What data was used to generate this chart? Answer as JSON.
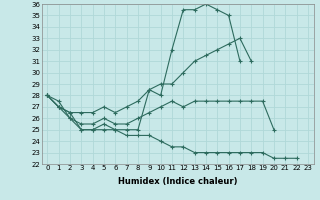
{
  "xlabel": "Humidex (Indice chaleur)",
  "bg_color": "#c8e8e8",
  "line_color": "#2d6b5e",
  "grid_color": "#b0d8d8",
  "ylim": [
    22,
    36
  ],
  "xlim": [
    -0.5,
    23.5
  ],
  "yticks": [
    22,
    23,
    24,
    25,
    26,
    27,
    28,
    29,
    30,
    31,
    32,
    33,
    34,
    35,
    36
  ],
  "xticks": [
    0,
    1,
    2,
    3,
    4,
    5,
    6,
    7,
    8,
    9,
    10,
    11,
    12,
    13,
    14,
    15,
    16,
    17,
    18,
    19,
    20,
    21,
    22,
    23
  ],
  "x_vals": [
    0,
    1,
    2,
    3,
    4,
    5,
    6,
    7,
    8,
    9,
    10,
    11,
    12,
    13,
    14,
    15,
    16,
    17,
    18,
    19,
    20,
    21,
    22,
    23
  ],
  "series": [
    [
      28,
      27,
      26.5,
      25.0,
      25.0,
      25.5,
      25.0,
      25.0,
      25.0,
      28.5,
      28.0,
      32.0,
      35.5,
      35.5,
      36.0,
      35.5,
      35.0,
      31.0,
      null,
      null,
      null,
      null,
      null,
      null
    ],
    [
      28,
      27,
      26.5,
      26.5,
      26.5,
      27.0,
      26.5,
      27.0,
      27.5,
      28.5,
      29.0,
      29.0,
      30.0,
      31.0,
      31.5,
      32.0,
      32.5,
      33.0,
      31.0,
      null,
      null,
      null,
      null,
      null
    ],
    [
      28,
      27,
      26.0,
      25.5,
      25.5,
      26.0,
      25.5,
      25.5,
      26.0,
      26.5,
      27.0,
      27.5,
      27.0,
      27.5,
      27.5,
      27.5,
      27.5,
      27.5,
      27.5,
      27.5,
      25.0,
      null,
      null,
      null
    ],
    [
      28,
      27.5,
      26.0,
      25.0,
      25.0,
      25.0,
      25.0,
      24.5,
      24.5,
      24.5,
      24.0,
      23.5,
      23.5,
      23.0,
      23.0,
      23.0,
      23.0,
      23.0,
      23.0,
      23.0,
      22.5,
      22.5,
      22.5,
      null
    ]
  ],
  "tick_fontsize": 5.0,
  "xlabel_fontsize": 6.0
}
